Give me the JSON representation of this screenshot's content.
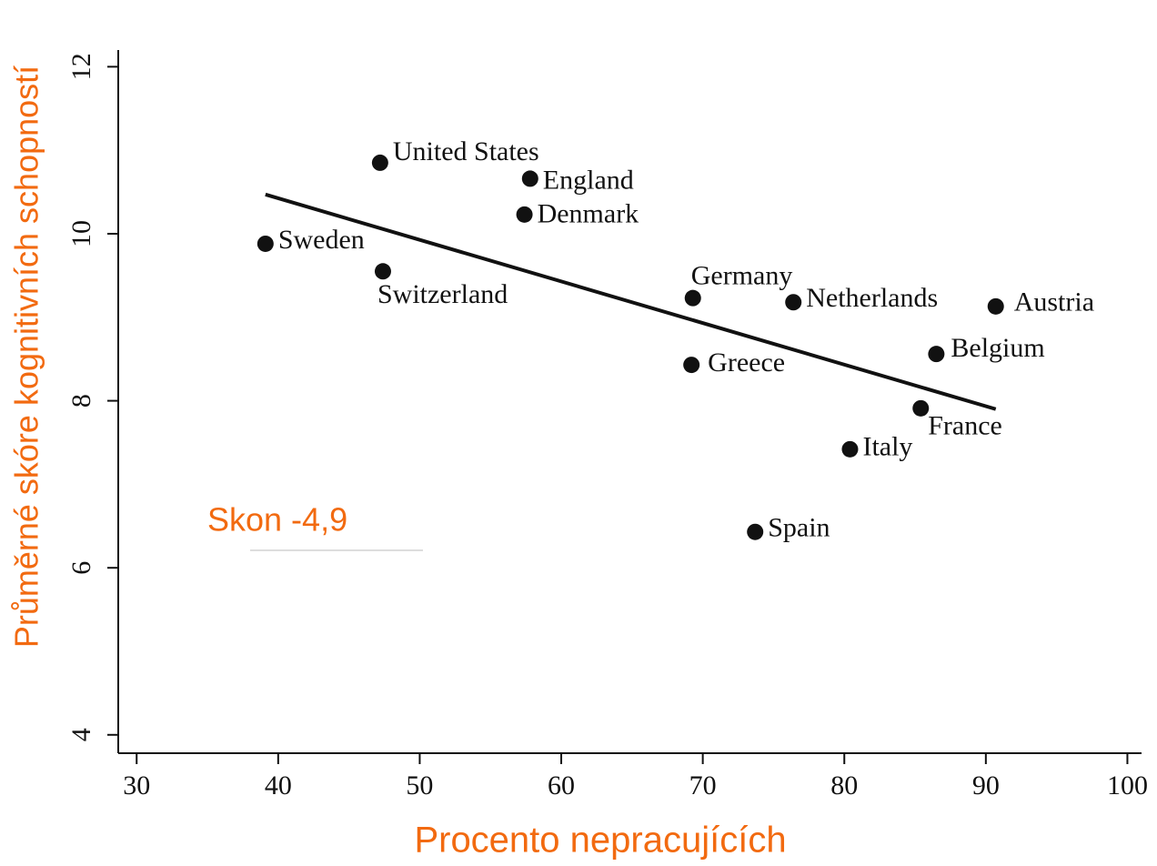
{
  "chart_data": {
    "type": "scatter",
    "x_label": "Procento nepracujících",
    "y_label": "Průměrné skóre kognitivních schopností",
    "annotation": "Skon -4,9",
    "labels": [
      "United States",
      "England",
      "Denmark",
      "Sweden",
      "Switzerland",
      "Germany",
      "Netherlands",
      "Austria",
      "Belgium",
      "Greece",
      "France",
      "Italy",
      "Spain"
    ],
    "x": [
      47.2,
      57.8,
      57.4,
      39.1,
      47.4,
      69.3,
      76.4,
      90.7,
      86.5,
      69.2,
      85.4,
      80.4,
      73.7
    ],
    "y": [
      10.85,
      10.66,
      10.23,
      9.88,
      9.55,
      9.23,
      9.18,
      9.13,
      8.56,
      8.43,
      7.91,
      7.42,
      6.43
    ],
    "color": "#111111",
    "fit_line": {
      "x": [
        39.1,
        90.7
      ],
      "y": [
        10.47,
        7.9
      ]
    },
    "xlim": [
      28.7,
      101
    ],
    "ylim": [
      3.78,
      12.2
    ],
    "xticks": [
      30,
      40,
      50,
      60,
      70,
      80,
      90,
      100
    ],
    "yticks": [
      4,
      6,
      8,
      10,
      12
    ]
  }
}
